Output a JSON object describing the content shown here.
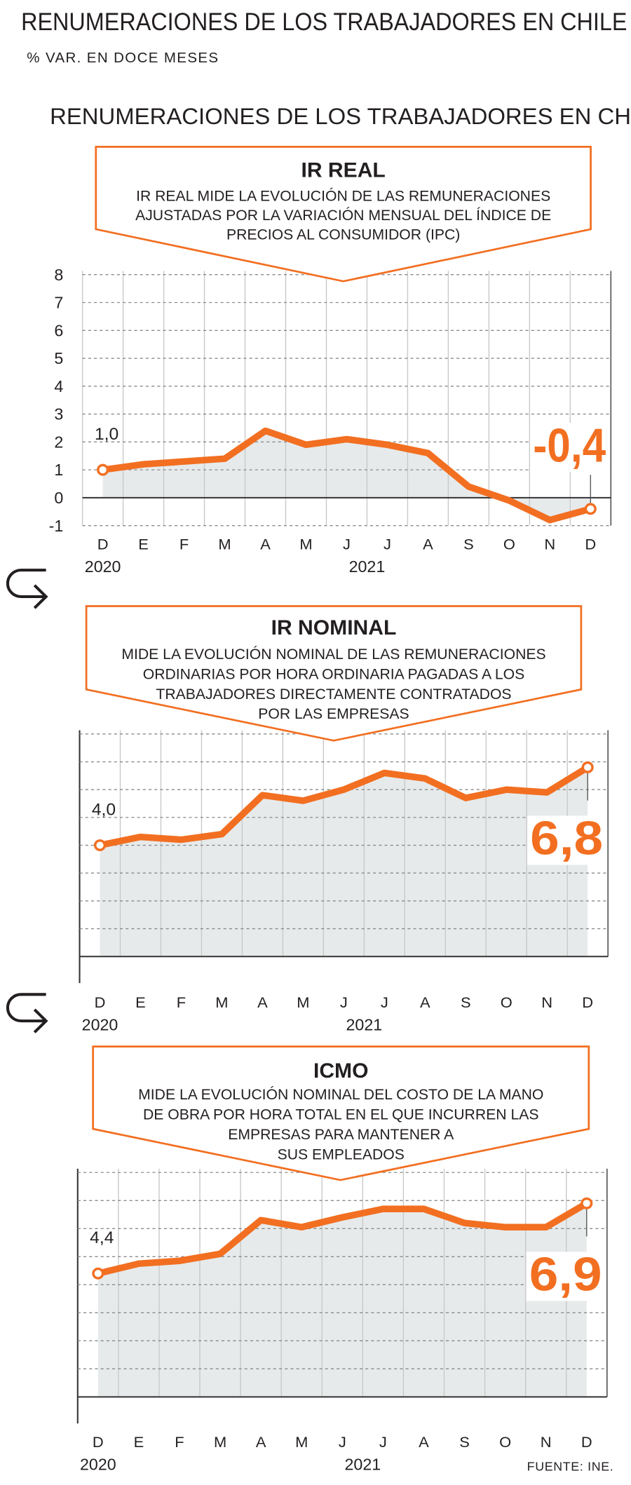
{
  "header": {
    "title": "RENUMERACIONES DE LOS TRABAJADORES EN CHILE",
    "subtitle": "% VAR. EN DOCE MESES",
    "title2": "RENUMERACIONES DE LOS TRABAJADORES EN CH"
  },
  "chart_data": [
    {
      "type": "line",
      "title": "IR REAL",
      "description": [
        "IR REAL MIDE LA EVOLUCIÓN DE LAS REMUNERACIONES",
        "AJUSTADAS POR LA VARIACIÓN MENSUAL DEL ÍNDICE DE",
        "PRECIOS AL CONSUMIDOR (IPC)"
      ],
      "categories": [
        "D",
        "E",
        "F",
        "M",
        "A",
        "M",
        "J",
        "J",
        "A",
        "S",
        "O",
        "N",
        "D"
      ],
      "years": [
        "2020",
        "2021"
      ],
      "values": [
        1.0,
        1.2,
        1.3,
        1.4,
        2.4,
        1.9,
        2.1,
        1.9,
        1.6,
        0.4,
        -0.1,
        -0.8,
        -0.4
      ],
      "value_labels": [
        "1,0",
        null,
        null,
        null,
        null,
        null,
        null,
        null,
        null,
        null,
        null,
        null,
        "-0,4"
      ],
      "color": "#f26f21",
      "ylim": [
        -1,
        8
      ],
      "yticks": [
        -1,
        0,
        1,
        2,
        3,
        4,
        5,
        6,
        7,
        8
      ],
      "show_ytick_labels": true,
      "grid": true
    },
    {
      "type": "line",
      "title": "IR NOMINAL",
      "description": [
        "MIDE LA EVOLUCIÓN NOMINAL DE LAS REMUNERACIONES",
        "ORDINARIAS POR HORA ORDINARIA PAGADAS A LOS",
        "TRABAJADORES DIRECTAMENTE CONTRATADOS",
        "POR LAS EMPRESAS"
      ],
      "categories": [
        "D",
        "E",
        "F",
        "M",
        "A",
        "M",
        "J",
        "J",
        "A",
        "S",
        "O",
        "N",
        "D"
      ],
      "years": [
        "2020",
        "2021"
      ],
      "values": [
        4.0,
        4.3,
        4.2,
        4.4,
        5.8,
        5.6,
        6.0,
        6.6,
        6.4,
        5.7,
        6.0,
        5.9,
        6.8
      ],
      "value_labels": [
        "4,0",
        null,
        null,
        null,
        null,
        null,
        null,
        null,
        null,
        null,
        null,
        null,
        "6,8"
      ],
      "color": "#f26f21",
      "ylim": [
        0,
        8
      ],
      "yticks": [
        0,
        1,
        2,
        3,
        4,
        5,
        6,
        7,
        8
      ],
      "show_ytick_labels": false,
      "grid": true
    },
    {
      "type": "line",
      "title": "ICMO",
      "description": [
        "MIDE LA EVOLUCIÓN NOMINAL DEL COSTO DE LA MANO",
        "DE OBRA POR HORA TOTAL EN EL QUE INCURREN LAS",
        "EMPRESAS PARA MANTENER A",
        "SUS EMPLEADOS"
      ],
      "categories": [
        "D",
        "E",
        "F",
        "M",
        "A",
        "M",
        "J",
        "J",
        "A",
        "S",
        "O",
        "N",
        "D"
      ],
      "years": [
        "2020",
        "2021"
      ],
      "values": [
        4.4,
        4.75,
        4.85,
        5.1,
        6.3,
        6.05,
        6.4,
        6.7,
        6.7,
        6.2,
        6.05,
        6.05,
        6.9
      ],
      "value_labels": [
        "4,4",
        null,
        null,
        null,
        null,
        null,
        null,
        null,
        null,
        null,
        null,
        null,
        "6,9"
      ],
      "color": "#f26f21",
      "ylim": [
        0,
        8
      ],
      "yticks": [
        0,
        1,
        2,
        3,
        4,
        5,
        6,
        7,
        8
      ],
      "show_ytick_labels": false,
      "grid": true
    }
  ],
  "source": "FUENTE: INE."
}
